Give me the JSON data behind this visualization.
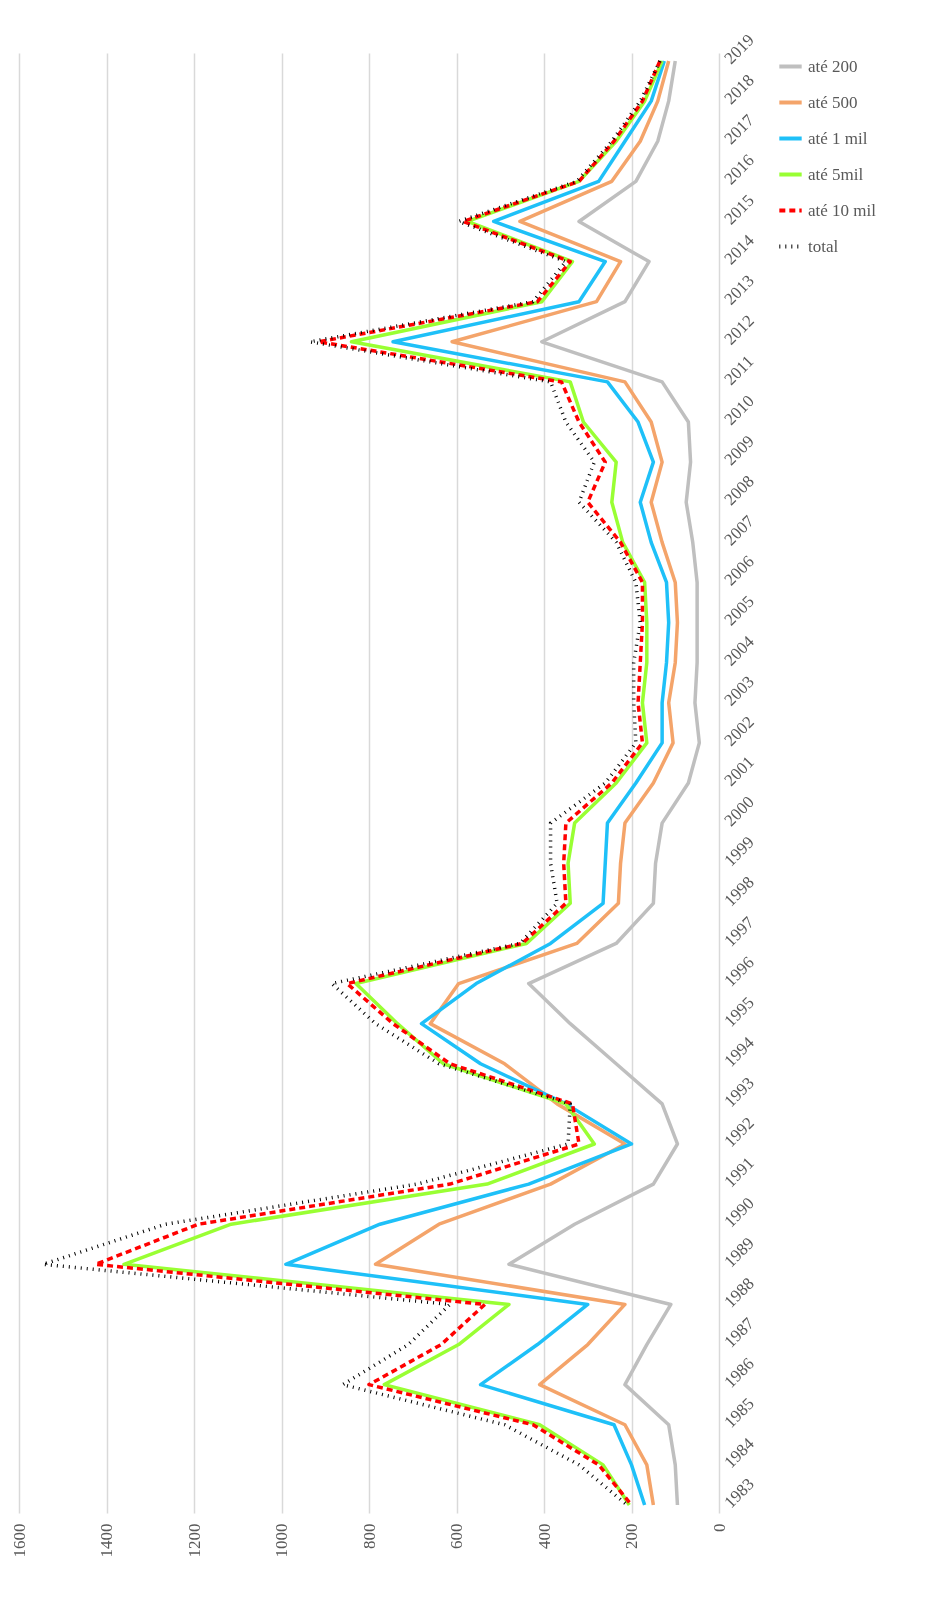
{
  "chart_data": {
    "type": "line",
    "orientation": "horizontal",
    "categories": [
      "2019",
      "2018",
      "2017",
      "2016",
      "2015",
      "2014",
      "2013",
      "2012",
      "2011",
      "2010",
      "2009",
      "2008",
      "2007",
      "2006",
      "2005",
      "2004",
      "2003",
      "2002",
      "2001",
      "2000",
      "1999",
      "1998",
      "1997",
      "1996",
      "1995",
      "1994",
      "1993",
      "1992",
      "1991",
      "1990",
      "1989",
      "1988",
      "1987",
      "1986",
      "1985",
      "1984",
      "1983"
    ],
    "series": [
      {
        "name": "até 200",
        "color": "#bfbfbf",
        "line_style": "solid",
        "values": [
          100,
          115,
          140,
          190,
          320,
          160,
          215,
          405,
          130,
          70,
          65,
          75,
          60,
          50,
          50,
          50,
          55,
          45,
          70,
          130,
          145,
          150,
          235,
          435,
          340,
          235,
          130,
          95,
          150,
          330,
          480,
          110,
          165,
          215,
          115,
          100,
          95
        ]
      },
      {
        "name": "até 500",
        "color": "#f4a46a",
        "line_style": "solid",
        "values": [
          115,
          140,
          180,
          245,
          455,
          225,
          280,
          610,
          215,
          155,
          130,
          155,
          130,
          100,
          95,
          100,
          115,
          105,
          150,
          215,
          225,
          230,
          325,
          595,
          660,
          490,
          370,
          215,
          385,
          640,
          785,
          215,
          300,
          410,
          215,
          165,
          150
        ]
      },
      {
        "name": "até 1 mil",
        "color": "#1ec0f8",
        "line_style": "solid",
        "values": [
          125,
          155,
          215,
          275,
          515,
          260,
          320,
          745,
          255,
          185,
          150,
          180,
          155,
          120,
          115,
          120,
          130,
          130,
          190,
          255,
          260,
          265,
          385,
          555,
          680,
          545,
          350,
          200,
          435,
          775,
          990,
          300,
          415,
          545,
          240,
          200,
          170
        ]
      },
      {
        "name": "até 5mil",
        "color": "#99ff33",
        "line_style": "solid",
        "values": [
          130,
          170,
          235,
          320,
          575,
          335,
          405,
          840,
          340,
          310,
          235,
          245,
          220,
          170,
          165,
          165,
          175,
          165,
          235,
          330,
          345,
          340,
          440,
          830,
          735,
          630,
          350,
          285,
          530,
          1115,
          1360,
          480,
          595,
          765,
          410,
          265,
          205
        ]
      },
      {
        "name": "até 10 mil",
        "color": "#ff0000",
        "line_style": "dashed",
        "values": [
          135,
          175,
          240,
          320,
          585,
          340,
          415,
          915,
          360,
          320,
          260,
          300,
          225,
          175,
          175,
          180,
          185,
          175,
          245,
          350,
          355,
          350,
          450,
          850,
          745,
          615,
          335,
          320,
          615,
          1190,
          1425,
          535,
          635,
          800,
          425,
          275,
          200
        ]
      },
      {
        "name": "total",
        "color": "#000000",
        "line_style": "dotted",
        "values": [
          135,
          180,
          245,
          325,
          595,
          350,
          425,
          935,
          385,
          350,
          285,
          320,
          235,
          190,
          180,
          195,
          195,
          190,
          260,
          385,
          385,
          370,
          455,
          885,
          785,
          640,
          340,
          345,
          690,
          1265,
          1545,
          615,
          710,
          860,
          490,
          320,
          210
        ]
      }
    ],
    "xlim": [
      1600,
      0
    ],
    "xticks": [
      0,
      200,
      400,
      600,
      800,
      1000,
      1200,
      1400,
      1600
    ],
    "grid": "x",
    "legend": "right",
    "marker": "none"
  }
}
